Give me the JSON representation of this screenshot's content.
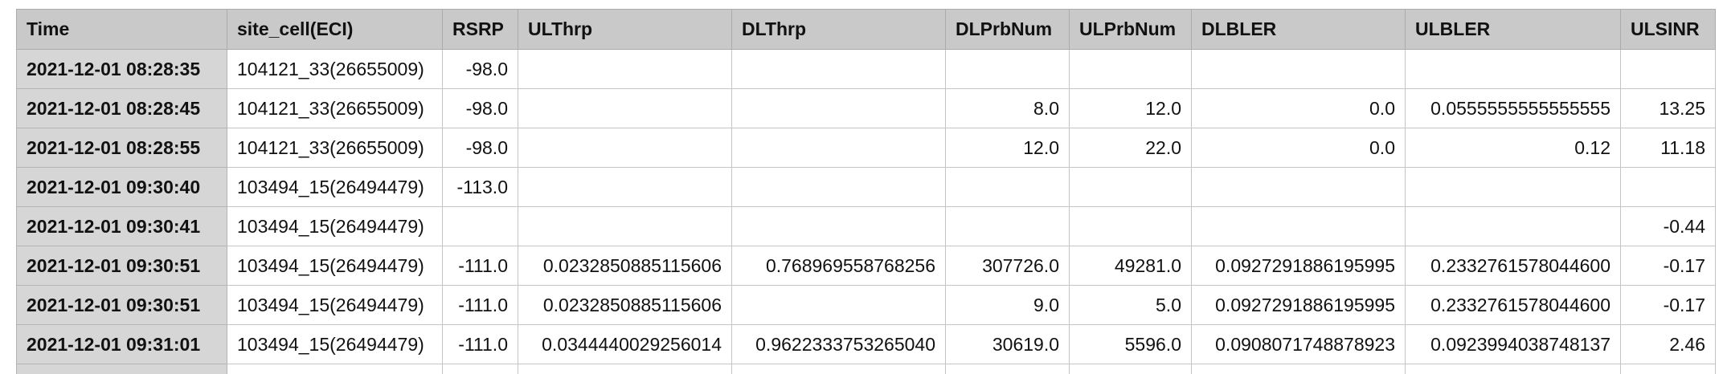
{
  "table": {
    "columns": [
      "Time",
      "site_cell(ECI)",
      "RSRP",
      "ULThrp",
      "DLThrp",
      "DLPrbNum",
      "ULPrbNum",
      "DLBLER",
      "ULBLER",
      "ULSINR"
    ],
    "rows": [
      [
        "2021-12-01 08:28:35",
        "104121_33(26655009)",
        "-98.0",
        "",
        "",
        "",
        "",
        "",
        "",
        ""
      ],
      [
        "2021-12-01 08:28:45",
        "104121_33(26655009)",
        "-98.0",
        "",
        "",
        "8.0",
        "12.0",
        "0.0",
        "0.0555555555555555",
        "13.25"
      ],
      [
        "2021-12-01 08:28:55",
        "104121_33(26655009)",
        "-98.0",
        "",
        "",
        "12.0",
        "22.0",
        "0.0",
        "0.12",
        "11.18"
      ],
      [
        "2021-12-01 09:30:40",
        "103494_15(26494479)",
        "-113.0",
        "",
        "",
        "",
        "",
        "",
        "",
        ""
      ],
      [
        "2021-12-01 09:30:41",
        "103494_15(26494479)",
        "",
        "",
        "",
        "",
        "",
        "",
        "",
        "-0.44"
      ],
      [
        "2021-12-01 09:30:51",
        "103494_15(26494479)",
        "-111.0",
        "0.0232850885115606",
        "0.768969558768256",
        "307726.0",
        "49281.0",
        "0.0927291886195995",
        "0.2332761578044600",
        "-0.17"
      ],
      [
        "2021-12-01 09:30:51",
        "103494_15(26494479)",
        "-111.0",
        "0.0232850885115606",
        "",
        "9.0",
        "5.0",
        "0.0927291886195995",
        "0.2332761578044600",
        "-0.17"
      ],
      [
        "2021-12-01 09:31:01",
        "103494_15(26494479)",
        "-111.0",
        "0.0344440029256014",
        "0.9622333753265040",
        "30619.0",
        "5596.0",
        "0.0908071748878923",
        "0.0923994038748137",
        "2.46"
      ]
    ]
  }
}
